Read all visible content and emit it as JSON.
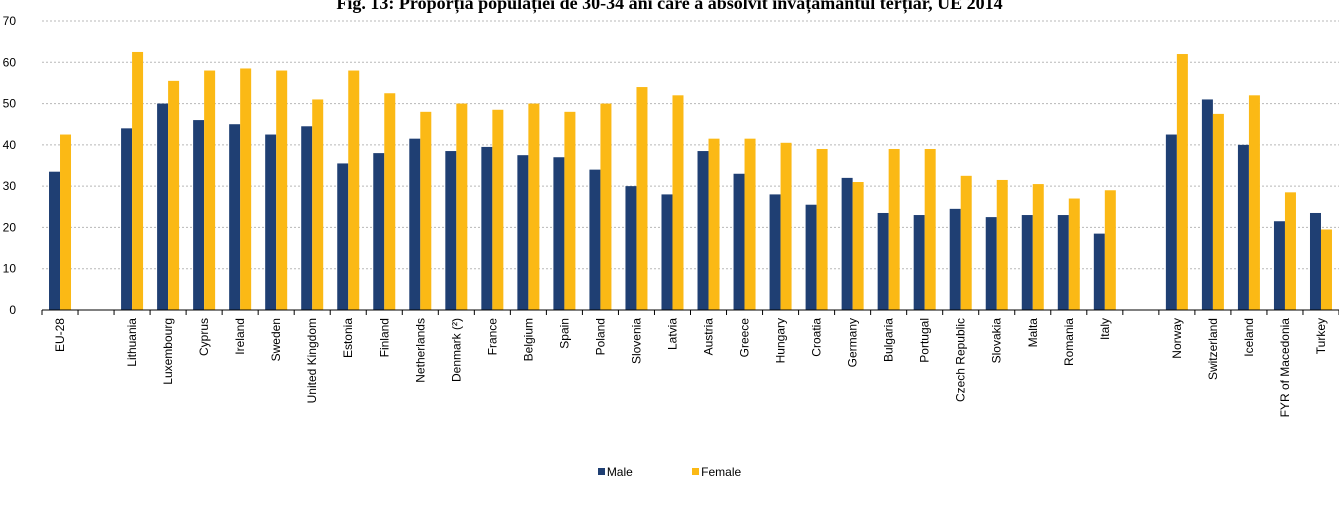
{
  "chart_data": {
    "type": "bar",
    "title": "Fig. 13: Proporția populației de 30-34 ani care a absolvit învățământul terțiar, UE 2014",
    "xlabel": "",
    "ylabel": "",
    "ylim": [
      0,
      70
    ],
    "yticks": [
      0,
      10,
      20,
      30,
      40,
      50,
      60,
      70
    ],
    "grid": true,
    "legend_position": "bottom-center",
    "categories": [
      "EU-28",
      "",
      "Lithuania",
      "Luxembourg",
      "Cyprus",
      "Ireland",
      "Sweden",
      "United Kingdom",
      "Estonia",
      "Finland",
      "Netherlands",
      "Denmark (²)",
      "France",
      "Belgium",
      "Spain",
      "Poland",
      "Slovenia",
      "Latvia",
      "Austria",
      "Greece",
      "Hungary",
      "Croatia",
      "Germany",
      "Bulgaria",
      "Portugal",
      "Czech Republic",
      "Slovakia",
      "Malta",
      "Romania",
      "Italy",
      "",
      "Norway",
      "Switzerland",
      "Iceland",
      "FYR of Macedonia",
      "Turkey"
    ],
    "series": [
      {
        "name": "Male",
        "color": "#1f3f73",
        "values": [
          33.5,
          null,
          44.0,
          50.0,
          46.0,
          45.0,
          42.5,
          44.5,
          35.5,
          38.0,
          41.5,
          38.5,
          39.5,
          37.5,
          37.0,
          34.0,
          30.0,
          28.0,
          38.5,
          33.0,
          28.0,
          25.5,
          32.0,
          23.5,
          23.0,
          24.5,
          22.5,
          23.0,
          23.0,
          18.5,
          null,
          42.5,
          51.0,
          40.0,
          21.5,
          23.5
        ]
      },
      {
        "name": "Female",
        "color": "#fbb915",
        "values": [
          42.5,
          null,
          62.5,
          55.5,
          58.0,
          58.5,
          58.0,
          51.0,
          58.0,
          52.5,
          48.0,
          50.0,
          48.5,
          50.0,
          48.0,
          50.0,
          54.0,
          52.0,
          41.5,
          41.5,
          40.5,
          39.0,
          31.0,
          39.0,
          39.0,
          32.5,
          31.5,
          30.5,
          27.0,
          29.0,
          null,
          62.0,
          47.5,
          52.0,
          28.5,
          19.5
        ]
      }
    ]
  }
}
